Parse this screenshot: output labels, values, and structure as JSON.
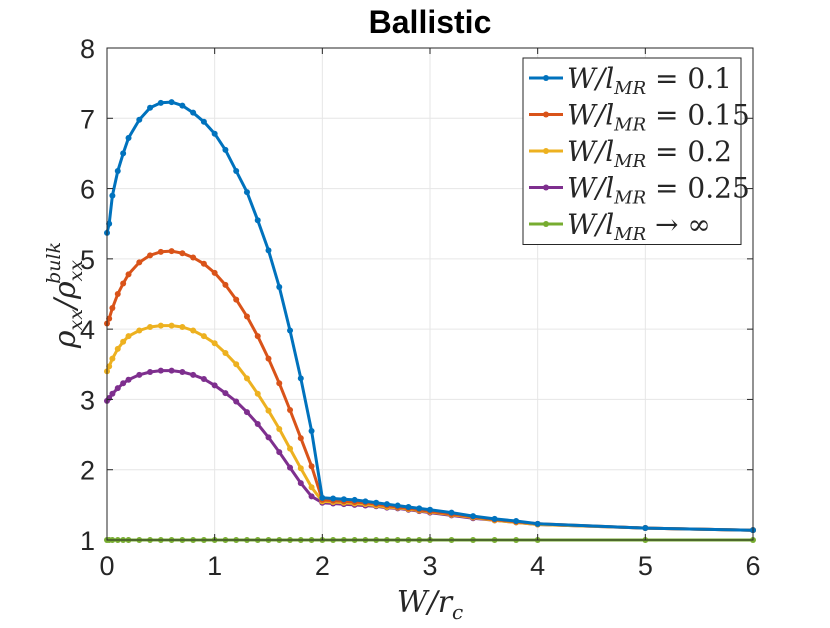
{
  "chart_data": {
    "type": "line",
    "title": "Ballistic",
    "xlabel": "W/r_c",
    "ylabel": "ρ_xx/ρ_xx^bulk",
    "xlim": [
      0,
      6
    ],
    "ylim": [
      1,
      8
    ],
    "xticks": [
      "0",
      "1",
      "2",
      "3",
      "4",
      "5",
      "6"
    ],
    "yticks": [
      "1",
      "2",
      "3",
      "4",
      "5",
      "6",
      "7",
      "8"
    ],
    "grid": true,
    "legend_position": "top-right",
    "series": [
      {
        "name": "W/l_MR = 0.1",
        "legend_main": "W/l",
        "legend_sub": "MR",
        "legend_rest": " = 0.1",
        "color": "#0072BD",
        "x": [
          0,
          0.02,
          0.05,
          0.1,
          0.15,
          0.2,
          0.3,
          0.4,
          0.5,
          0.6,
          0.7,
          0.8,
          0.9,
          1.0,
          1.1,
          1.2,
          1.3,
          1.4,
          1.5,
          1.6,
          1.7,
          1.8,
          1.9,
          2.0,
          2.1,
          2.2,
          2.3,
          2.4,
          2.5,
          2.6,
          2.7,
          2.8,
          2.9,
          3.0,
          3.2,
          3.4,
          3.6,
          3.8,
          4.0,
          5.0,
          6.0
        ],
        "y": [
          5.37,
          5.5,
          5.9,
          6.25,
          6.5,
          6.72,
          6.98,
          7.15,
          7.22,
          7.23,
          7.18,
          7.08,
          6.95,
          6.78,
          6.55,
          6.25,
          5.95,
          5.55,
          5.12,
          4.6,
          3.98,
          3.3,
          2.55,
          1.6,
          1.59,
          1.58,
          1.57,
          1.55,
          1.53,
          1.51,
          1.49,
          1.47,
          1.45,
          1.43,
          1.39,
          1.34,
          1.3,
          1.27,
          1.23,
          1.17,
          1.14
        ]
      },
      {
        "name": "W/l_MR = 0.15",
        "legend_main": "W/l",
        "legend_sub": "MR",
        "legend_rest": " = 0.15",
        "color": "#D95319",
        "x": [
          0,
          0.02,
          0.05,
          0.1,
          0.15,
          0.2,
          0.3,
          0.4,
          0.5,
          0.6,
          0.7,
          0.8,
          0.9,
          1.0,
          1.1,
          1.2,
          1.3,
          1.4,
          1.5,
          1.6,
          1.7,
          1.8,
          1.9,
          2.0,
          2.1,
          2.2,
          2.3,
          2.4,
          2.5,
          2.6,
          2.7,
          2.8,
          2.9,
          3.0,
          3.2,
          3.4,
          3.6,
          3.8,
          4.0,
          5.0,
          6.0
        ],
        "y": [
          4.08,
          4.15,
          4.3,
          4.5,
          4.65,
          4.78,
          4.95,
          5.05,
          5.1,
          5.11,
          5.08,
          5.02,
          4.93,
          4.8,
          4.63,
          4.42,
          4.18,
          3.9,
          3.58,
          3.23,
          2.85,
          2.45,
          2.05,
          1.57,
          1.56,
          1.55,
          1.54,
          1.53,
          1.51,
          1.49,
          1.47,
          1.45,
          1.43,
          1.41,
          1.37,
          1.33,
          1.29,
          1.26,
          1.23,
          1.17,
          1.14
        ]
      },
      {
        "name": "W/l_MR = 0.2",
        "legend_main": "W/l",
        "legend_sub": "MR",
        "legend_rest": " = 0.2",
        "color": "#EDB120",
        "x": [
          0,
          0.02,
          0.05,
          0.1,
          0.15,
          0.2,
          0.3,
          0.4,
          0.5,
          0.6,
          0.7,
          0.8,
          0.9,
          1.0,
          1.1,
          1.2,
          1.3,
          1.4,
          1.5,
          1.6,
          1.7,
          1.8,
          1.9,
          2.0,
          2.1,
          2.2,
          2.3,
          2.4,
          2.5,
          2.6,
          2.7,
          2.8,
          2.9,
          3.0,
          3.2,
          3.4,
          3.6,
          3.8,
          4.0,
          5.0,
          6.0
        ],
        "y": [
          3.4,
          3.47,
          3.58,
          3.72,
          3.82,
          3.9,
          3.98,
          4.03,
          4.05,
          4.05,
          4.03,
          3.98,
          3.9,
          3.8,
          3.66,
          3.5,
          3.3,
          3.08,
          2.84,
          2.58,
          2.3,
          2.02,
          1.75,
          1.55,
          1.54,
          1.53,
          1.52,
          1.51,
          1.49,
          1.47,
          1.46,
          1.44,
          1.42,
          1.4,
          1.36,
          1.32,
          1.28,
          1.25,
          1.22,
          1.17,
          1.14
        ]
      },
      {
        "name": "W/l_MR = 0.25",
        "legend_main": "W/l",
        "legend_sub": "MR",
        "legend_rest": " = 0.25",
        "color": "#7E2F8E",
        "x": [
          0,
          0.02,
          0.05,
          0.1,
          0.15,
          0.2,
          0.3,
          0.4,
          0.5,
          0.6,
          0.7,
          0.8,
          0.9,
          1.0,
          1.1,
          1.2,
          1.3,
          1.4,
          1.5,
          1.6,
          1.7,
          1.8,
          1.9,
          2.0,
          2.1,
          2.2,
          2.3,
          2.4,
          2.5,
          2.6,
          2.7,
          2.8,
          2.9,
          3.0,
          3.2,
          3.4,
          3.6,
          3.8,
          4.0,
          5.0,
          6.0
        ],
        "y": [
          2.98,
          3.02,
          3.08,
          3.16,
          3.23,
          3.28,
          3.35,
          3.39,
          3.41,
          3.41,
          3.39,
          3.35,
          3.29,
          3.2,
          3.09,
          2.97,
          2.82,
          2.65,
          2.46,
          2.25,
          2.03,
          1.81,
          1.62,
          1.53,
          1.52,
          1.51,
          1.5,
          1.49,
          1.48,
          1.46,
          1.45,
          1.43,
          1.41,
          1.39,
          1.35,
          1.31,
          1.28,
          1.25,
          1.22,
          1.17,
          1.14
        ]
      },
      {
        "name": "W/l_MR → ∞",
        "legend_main": "W/l",
        "legend_sub": "MR",
        "legend_rest": " → ∞",
        "color": "#77AC30",
        "x": [
          0,
          0.02,
          0.05,
          0.1,
          0.15,
          0.2,
          0.3,
          0.4,
          0.5,
          0.6,
          0.7,
          0.8,
          0.9,
          1.0,
          1.1,
          1.2,
          1.3,
          1.4,
          1.5,
          1.6,
          1.7,
          1.8,
          1.9,
          2.0,
          2.1,
          2.2,
          2.3,
          2.4,
          2.5,
          2.6,
          2.7,
          2.8,
          2.9,
          3.0,
          3.2,
          3.4,
          3.6,
          3.8,
          4.0,
          5.0,
          6.0
        ],
        "y": [
          1,
          1,
          1,
          1,
          1,
          1,
          1,
          1,
          1,
          1,
          1,
          1,
          1,
          1,
          1,
          1,
          1,
          1,
          1,
          1,
          1,
          1,
          1,
          1,
          1,
          1,
          1,
          1,
          1,
          1,
          1,
          1,
          1,
          1,
          1,
          1,
          1,
          1,
          1,
          1,
          1
        ]
      }
    ]
  }
}
